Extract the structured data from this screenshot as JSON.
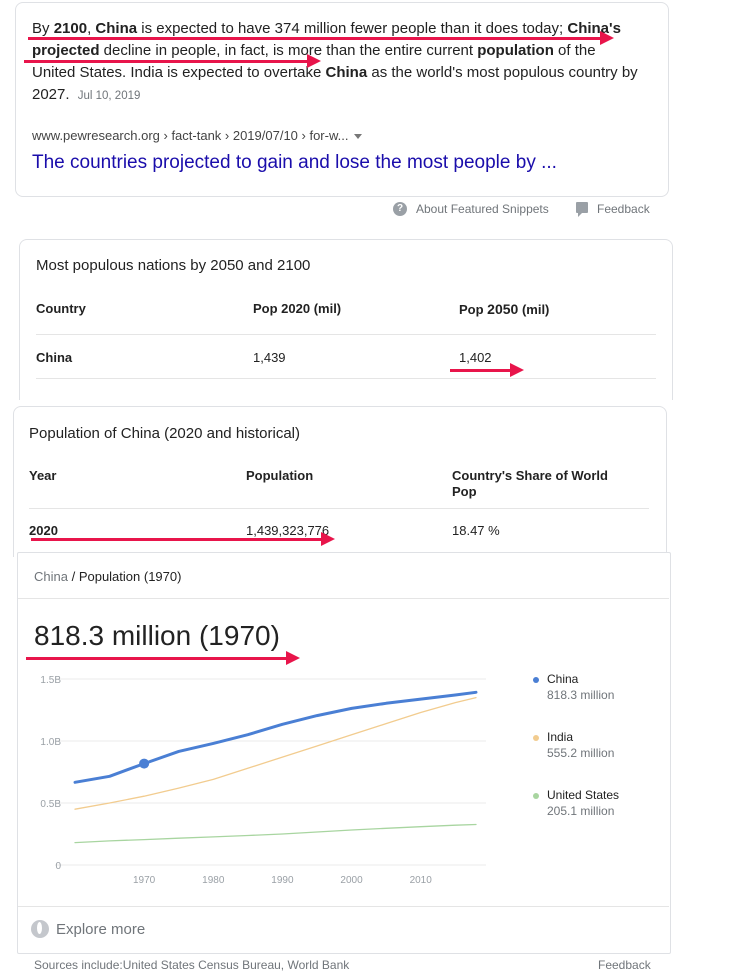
{
  "snippet": {
    "text_html": "By <b>2100</b>, <b>China</b> is expected to have 374 million fewer people than it does today; <b>China's projected</b> decline in people, in fact, is more than the entire current <b>population</b> of the United States. India is expected to overtake <b>China</b> as the world's most populous country by 2027.",
    "date": "Jul 10, 2019",
    "cite": "www.pewresearch.org › fact-tank › 2019/07/10 › for-w...",
    "link": "The countries projected to gain and lose the most people by ...",
    "about": "About Featured Snippets",
    "feedback": "Feedback"
  },
  "table1": {
    "title": "Most populous nations by 2050 and 2100",
    "headers": [
      "Country",
      "Pop 2020 (mil)",
      "Pop ",
      "2050",
      " (mil)"
    ],
    "row": [
      "China",
      "1,439",
      "1,402"
    ]
  },
  "table2": {
    "title": "Population of China (2020 and historical)",
    "headers": [
      "Year",
      "Population",
      "Country's Share of World",
      "Pop"
    ],
    "row": [
      "2020",
      "1,439,323,776",
      "18.47 %"
    ]
  },
  "chart_panel": {
    "breadcrumb_country": "China",
    "breadcrumb_sep": " / ",
    "breadcrumb_page": "Population (1970)",
    "headline": "818.3 million (1970)",
    "explore": "Explore more",
    "sources": "Sources include:United States Census Bureau, World Bank",
    "feedback": "Feedback"
  },
  "chart_data": {
    "type": "line",
    "x": [
      1960,
      1965,
      1970,
      1975,
      1980,
      1985,
      1990,
      1995,
      2000,
      2005,
      2010,
      2015,
      2018
    ],
    "series": [
      {
        "name": "China",
        "color": "#4a7fd4",
        "values": [
          0.667,
          0.715,
          0.818,
          0.916,
          0.981,
          1.051,
          1.135,
          1.205,
          1.263,
          1.304,
          1.338,
          1.371,
          1.393
        ]
      },
      {
        "name": "India",
        "color": "#f2cc8f",
        "values": [
          0.45,
          0.5,
          0.555,
          0.62,
          0.69,
          0.78,
          0.87,
          0.96,
          1.05,
          1.14,
          1.23,
          1.31,
          1.35
        ]
      },
      {
        "name": "United States",
        "color": "#a8d5a0",
        "values": [
          0.181,
          0.194,
          0.205,
          0.216,
          0.227,
          0.238,
          0.25,
          0.266,
          0.282,
          0.296,
          0.309,
          0.321,
          0.327
        ]
      }
    ],
    "highlight": {
      "x": 1970,
      "y": 0.818
    },
    "yticks": [
      "0",
      "0.5B",
      "1.0B",
      "1.5B"
    ],
    "ytick_values": [
      0,
      0.5,
      1.0,
      1.5
    ],
    "xticks": [
      "1970",
      "1980",
      "1990",
      "2000",
      "2010"
    ],
    "xtick_values": [
      1970,
      1980,
      1990,
      2000,
      2010
    ],
    "ylim": [
      0,
      1.5
    ],
    "xlim": [
      1960,
      2018
    ],
    "grid": true,
    "legend": [
      {
        "name": "China",
        "value": "818.3 million",
        "color": "#4a7fd4"
      },
      {
        "name": "India",
        "value": "555.2 million",
        "color": "#f2cc8f"
      },
      {
        "name": "United States",
        "value": "205.1 million",
        "color": "#a8d5a0"
      }
    ]
  },
  "annotation_color": "#e8154b"
}
